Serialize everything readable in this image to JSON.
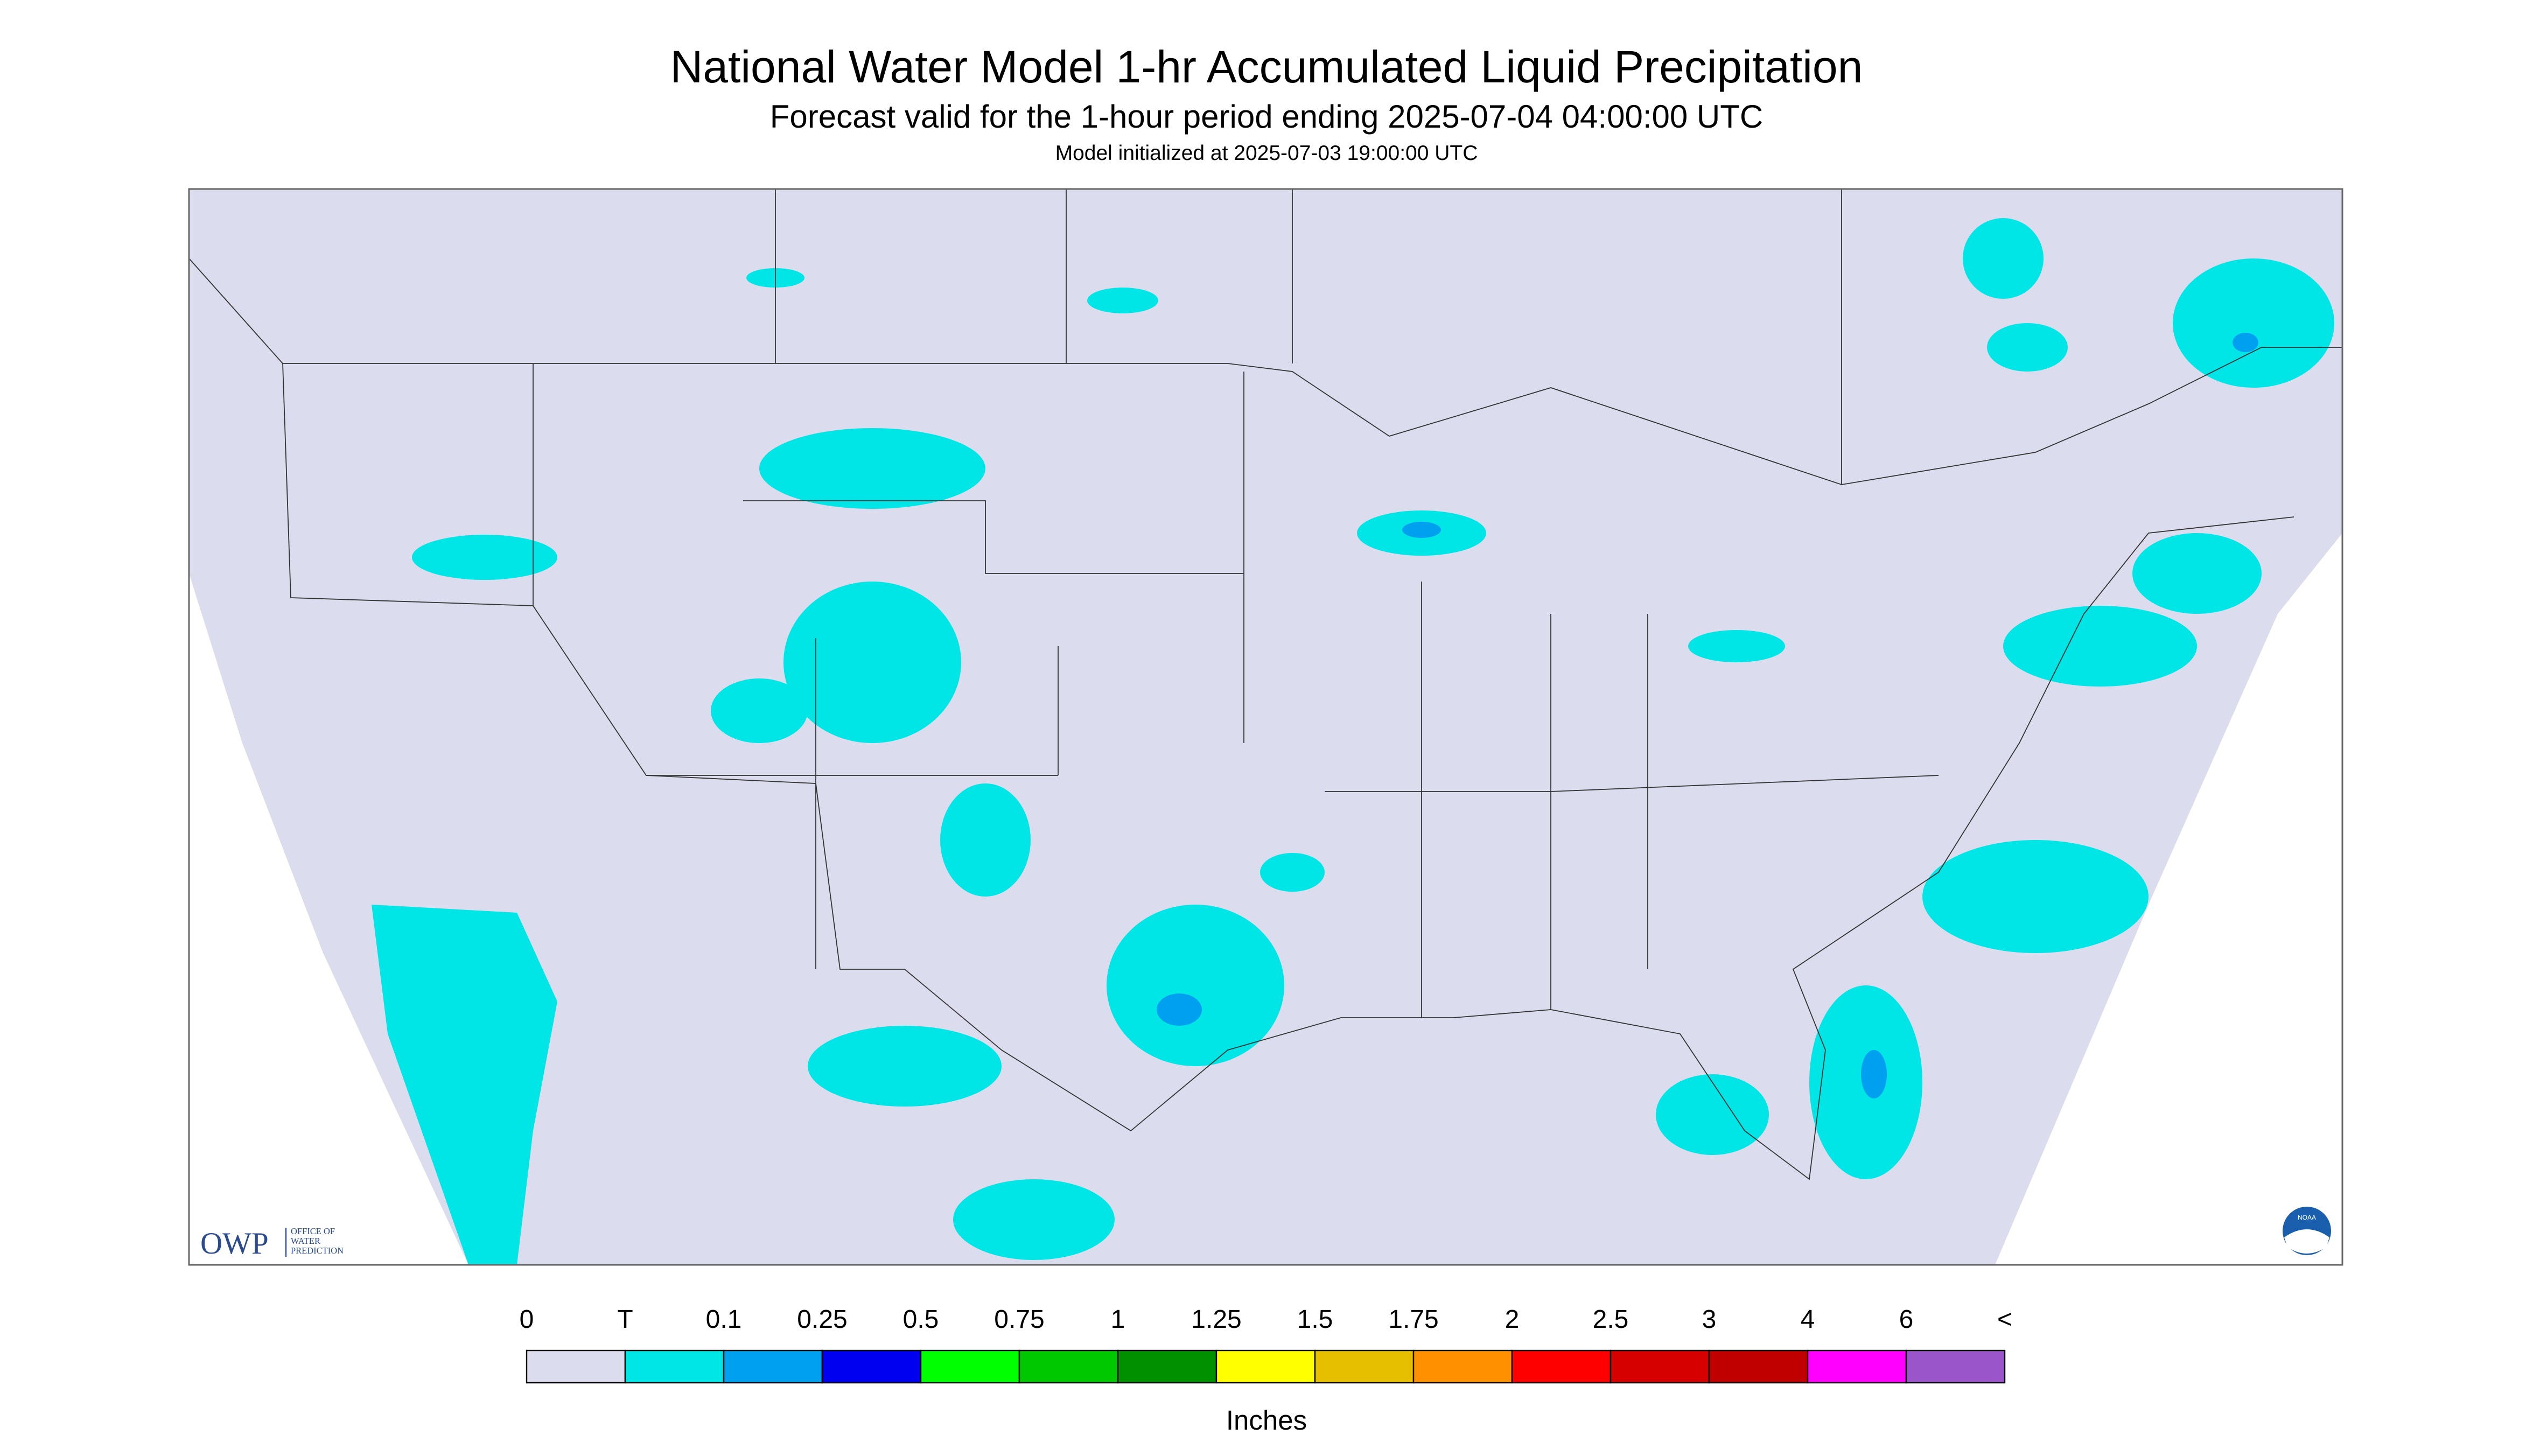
{
  "header": {
    "title": "National Water Model 1-hr Accumulated Liquid Precipitation",
    "subtitle": "Forecast valid for the 1-hour period ending 2025-07-04 04:00:00 UTC",
    "initialized": "Model initialized at 2025-07-03 19:00:00 UTC"
  },
  "logo": {
    "name": "OWP",
    "line1": "OFFICE OF",
    "line2": "WATER",
    "line3": "PREDICTION",
    "agency": "NOAA"
  },
  "legend": {
    "labels": [
      "0",
      "T",
      "0.1",
      "0.25",
      "0.5",
      "0.75",
      "1",
      "1.25",
      "1.5",
      "1.75",
      "2",
      "2.5",
      "3",
      "4",
      "6",
      "<"
    ],
    "colors": [
      "#dcdcef",
      "#00e6e6",
      "#00a0f0",
      "#0000f0",
      "#00ff00",
      "#00c800",
      "#009000",
      "#ffff00",
      "#e6c000",
      "#ff9000",
      "#ff0000",
      "#d60000",
      "#c00000",
      "#ff00ff",
      "#9955c9"
    ],
    "unit": "Inches"
  }
}
